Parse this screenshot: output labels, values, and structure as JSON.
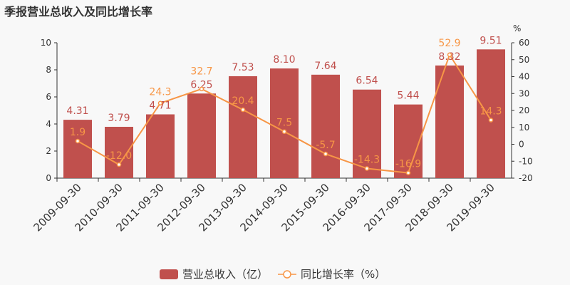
{
  "title": "季报营业总收入及同比增长率",
  "chart_data": {
    "type": "bar",
    "title": "季报营业总收入及同比增长率",
    "categories": [
      "2009-09-30",
      "2010-09-30",
      "2011-09-30",
      "2012-09-30",
      "2013-09-30",
      "2014-09-30",
      "2015-09-30",
      "2016-09-30",
      "2017-09-30",
      "2018-09-30",
      "2019-09-30"
    ],
    "series": [
      {
        "name": "营业总收入（亿）",
        "type": "bar",
        "axis": "left",
        "color": "#c0504d",
        "values": [
          4.31,
          3.79,
          4.71,
          6.25,
          7.53,
          8.1,
          7.64,
          6.54,
          5.44,
          8.32,
          9.51
        ],
        "labels": [
          "4.31",
          "3.79",
          "4.71",
          "6.25",
          "7.53",
          "8.10",
          "7.64",
          "6.54",
          "5.44",
          "8.32",
          "9.51"
        ]
      },
      {
        "name": "同比增长率（%）",
        "type": "line",
        "axis": "right",
        "color": "#f79646",
        "values": [
          1.9,
          -12.0,
          24.3,
          32.7,
          20.4,
          7.5,
          -5.7,
          -14.3,
          -16.9,
          52.9,
          14.3
        ],
        "labels": [
          "1.9",
          "-12.0",
          "24.3",
          "32.7",
          "20.4",
          "7.5",
          "-5.7",
          "-14.3",
          "-16.9",
          "52.9",
          "14.3"
        ]
      }
    ],
    "left_axis": {
      "ylim": [
        0,
        10
      ],
      "ticks": [
        "0",
        "2",
        "4",
        "6",
        "8",
        "10"
      ]
    },
    "right_axis": {
      "label": "%",
      "ylim": [
        -20,
        60
      ],
      "ticks": [
        "-20",
        "-10",
        "0",
        "10",
        "20",
        "30",
        "40",
        "50",
        "60"
      ]
    },
    "legend": "bottom-center"
  },
  "legend": {
    "bar": "营业总收入（亿）",
    "line": "同比增长率（%）"
  }
}
